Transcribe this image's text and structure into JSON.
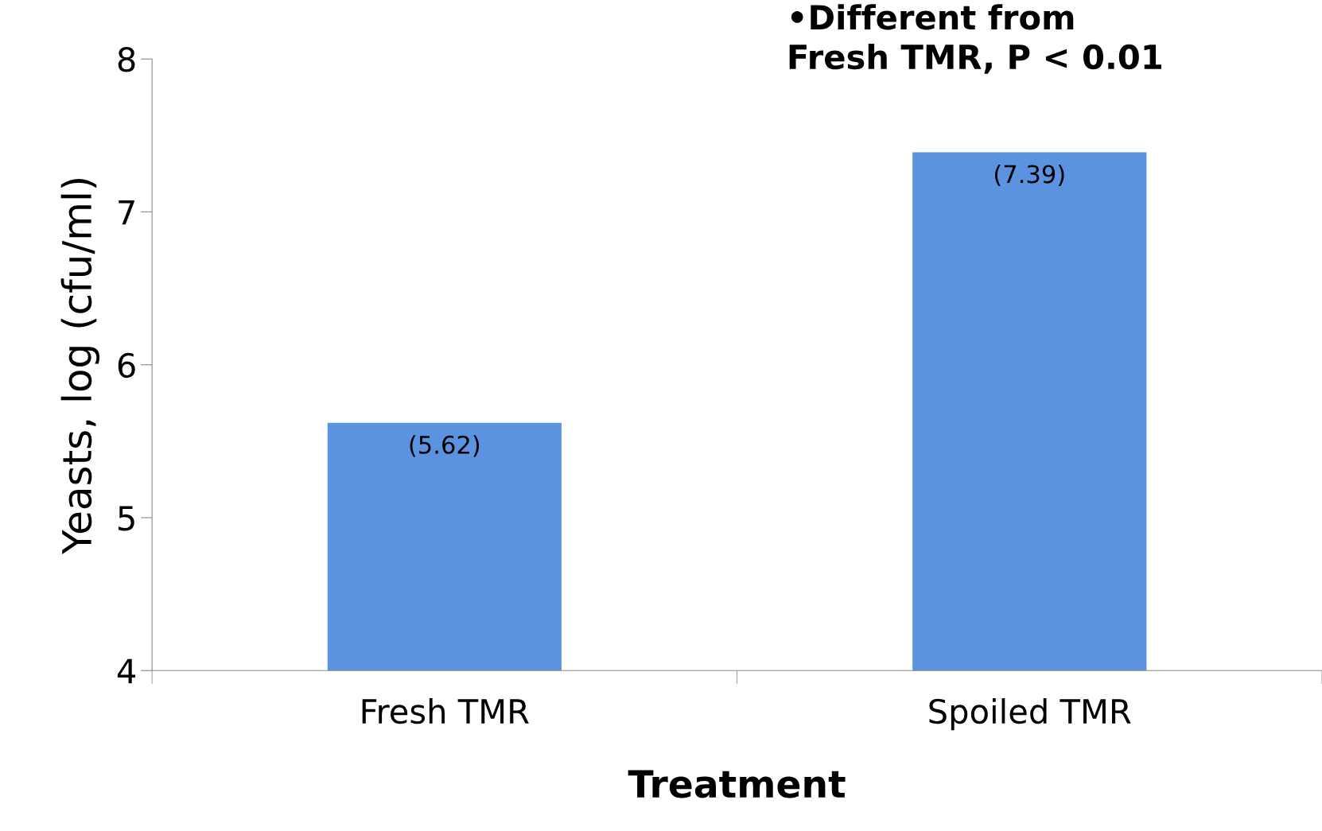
{
  "chart_data": {
    "type": "bar",
    "categories": [
      "Fresh TMR",
      "Spoiled TMR"
    ],
    "values": [
      5.62,
      7.39
    ],
    "value_labels": [
      "(5.62)",
      "(7.39)"
    ],
    "color": "#5b93e0",
    "xlabel": "Treatment",
    "ylabel": "Yeasts, log (cfu/ml)",
    "ylim": [
      4,
      8
    ],
    "yticks": [
      4,
      5,
      6,
      7,
      8
    ],
    "grid": false,
    "annotations": [
      "•Different from\nFresh TMR, P < 0.01"
    ]
  }
}
